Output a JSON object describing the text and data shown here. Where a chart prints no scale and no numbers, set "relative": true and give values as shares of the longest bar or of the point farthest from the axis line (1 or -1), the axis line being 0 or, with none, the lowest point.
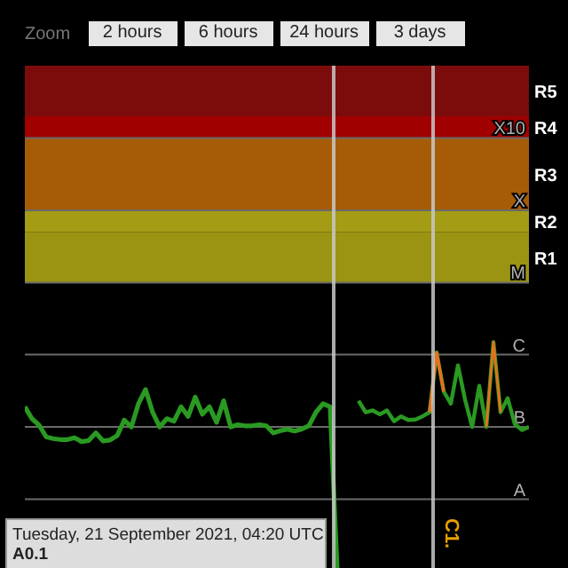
{
  "chart_data": {
    "type": "line",
    "relative": true,
    "categories": [
      null,
      null,
      null,
      null,
      null,
      null,
      null,
      null,
      null,
      null,
      null,
      null,
      null,
      null,
      null,
      null,
      null,
      null,
      null,
      null,
      null,
      null,
      null,
      null,
      null,
      null,
      null,
      null,
      null,
      null,
      null,
      null,
      null,
      null,
      null,
      null,
      null,
      null,
      null,
      null,
      null,
      null,
      null,
      null,
      null,
      null,
      null,
      null,
      null,
      null,
      null,
      null,
      null,
      null,
      null,
      null,
      null,
      null,
      null,
      null,
      null,
      null,
      null,
      null,
      null,
      null,
      null,
      null,
      null,
      null,
      null,
      null
    ],
    "series": [
      {
        "color": "#2a9a22",
        "values": [
          0.718,
          0.666,
          0.638,
          0.587,
          0.579,
          0.575,
          0.575,
          0.583,
          0.566,
          0.571,
          0.604,
          0.569,
          0.573,
          0.592,
          0.66,
          0.63,
          0.731,
          0.793,
          0.694,
          0.63,
          0.666,
          0.655,
          0.718,
          0.676,
          0.76,
          0.685,
          0.718,
          0.65,
          0.744,
          0.63,
          0.64,
          0.635,
          0.635,
          0.64,
          0.635,
          0.604,
          0.614,
          0.62,
          0.612,
          0.621,
          0.635,
          0.694,
          0.731,
          0.718,
          0,
          null,
          null,
          null,
          null,
          null,
          null,
          null,
          null,
          null,
          null,
          null,
          null,
          null,
          null,
          null,
          null,
          null,
          null,
          null,
          null,
          null,
          null,
          null,
          null,
          null,
          null,
          null
        ]
      },
      {
        "color": "#2a9a22",
        "values": [
          null,
          null,
          null,
          null,
          null,
          null,
          null,
          null,
          null,
          null,
          null,
          null,
          null,
          null,
          null,
          null,
          null,
          null,
          null,
          null,
          null,
          null,
          null,
          null,
          null,
          null,
          null,
          null,
          null,
          null,
          null,
          null,
          null,
          null,
          null,
          null,
          null,
          null,
          null,
          null,
          null,
          null,
          null,
          null,
          null,
          null,
          null,
          0.744,
          0.694,
          0.702,
          0.685,
          0.702,
          0.655,
          0.676,
          0.66,
          0.662,
          0.676,
          0.694,
          0.954,
          0.784,
          0.731,
          0.898,
          0.749,
          0.63,
          0.809,
          0.63,
          1,
          0.694,
          0.755,
          0.643,
          0.617,
          0.63
        ]
      },
      {
        "color": "#e8701c",
        "values": [
          null,
          null,
          null,
          null,
          null,
          null,
          null,
          null,
          null,
          null,
          null,
          null,
          null,
          null,
          null,
          null,
          null,
          null,
          null,
          null,
          null,
          null,
          null,
          null,
          null,
          null,
          null,
          null,
          null,
          null,
          null,
          null,
          null,
          null,
          null,
          null,
          null,
          null,
          null,
          null,
          null,
          null,
          null,
          null,
          null,
          null,
          null,
          null,
          null,
          null,
          null,
          null,
          null,
          null,
          null,
          null,
          null,
          0.694,
          0.954,
          0.784,
          null,
          null,
          null,
          null,
          null,
          null,
          null,
          null,
          null,
          null,
          null,
          null
        ]
      },
      {
        "color": "#e8701c",
        "values": [
          null,
          null,
          null,
          null,
          null,
          null,
          null,
          null,
          null,
          null,
          null,
          null,
          null,
          null,
          null,
          null,
          null,
          null,
          null,
          null,
          null,
          null,
          null,
          null,
          null,
          null,
          null,
          null,
          null,
          null,
          null,
          null,
          null,
          null,
          null,
          null,
          null,
          null,
          null,
          null,
          null,
          null,
          null,
          null,
          null,
          null,
          null,
          null,
          null,
          null,
          null,
          null,
          null,
          null,
          null,
          null,
          null,
          null,
          null,
          null,
          null,
          null,
          null,
          null,
          null,
          0.63,
          1,
          0.694,
          null,
          null,
          null,
          null
        ]
      }
    ],
    "marker": "none",
    "line_style": "solid",
    "bands": [
      {
        "axis": "y",
        "from": 1.259,
        "to": 1.48,
        "label": "R1",
        "color": "#9a9412"
      },
      {
        "axis": "y",
        "from": 1.48,
        "to": 1.574,
        "label": "R2",
        "color": "#a39c14"
      },
      {
        "axis": "y",
        "from": 1.574,
        "to": 1.889,
        "label": "R3",
        "color": "#a65c06"
      },
      {
        "axis": "y",
        "from": 1.889,
        "to": 1.984,
        "label": "R4",
        "color": "#a00000"
      },
      {
        "axis": "y",
        "from": 1.984,
        "to": 2.204,
        "label": "R5",
        "color": "#7c0c0c"
      }
    ],
    "ref_lines": [
      {
        "axis": "y",
        "value": 0.315,
        "label": "A",
        "color": "#6a6a6a"
      },
      {
        "axis": "y",
        "value": 0.63,
        "label": "B",
        "color": "#6a6a6a"
      },
      {
        "axis": "y",
        "value": 0.945,
        "label": "C",
        "color": "#6a6a6a"
      },
      {
        "axis": "y",
        "value": 1.259,
        "label": "M",
        "color": "#6a6a6a"
      },
      {
        "axis": "y",
        "value": 1.574,
        "label": "X",
        "color": "#6a6a6a"
      },
      {
        "axis": "y",
        "value": 1.889,
        "label": "X10",
        "color": "#6a6a6a"
      }
    ],
    "annotations": [
      "Zoom",
      "2 hours",
      "6 hours",
      "24 hours",
      "3 days",
      "Tuesday, 21 September 2021, 04:20 UTC",
      "A0.1",
      "C1."
    ]
  }
}
